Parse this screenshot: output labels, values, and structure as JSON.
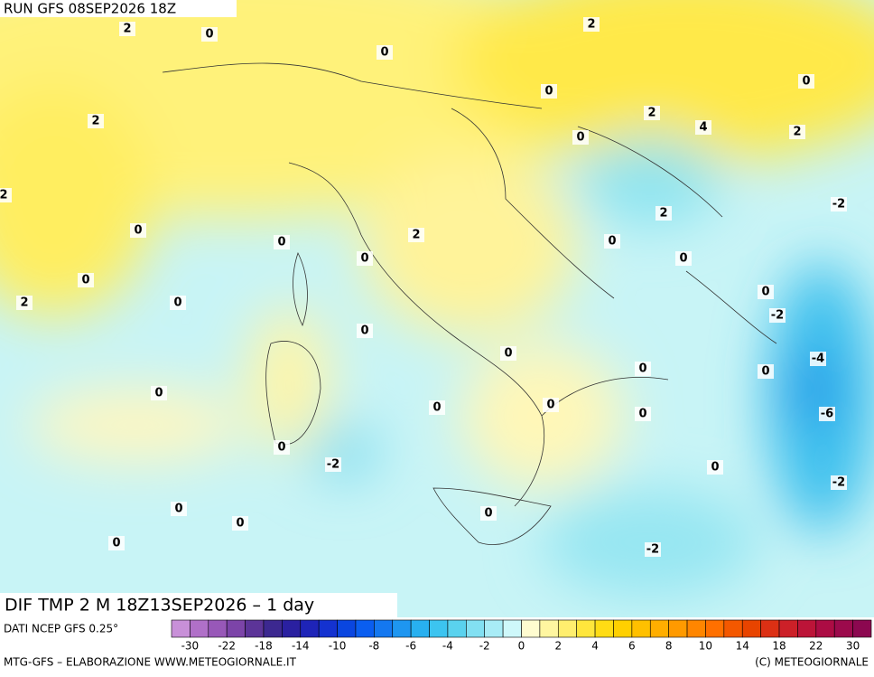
{
  "header": {
    "run": "RUN GFS 08SEP2026 18Z"
  },
  "map": {
    "title": "DIF TMP 2 M 18Z13SEP2026 – 1 day",
    "source": "DATI NCEP GFS 0.25°",
    "contour_labels": [
      2,
      0,
      2,
      0,
      0,
      0,
      2,
      2,
      4,
      2,
      0,
      2,
      -2,
      2,
      0,
      2,
      0,
      0,
      0,
      0,
      0,
      2,
      0,
      0,
      -2,
      0,
      0,
      -4,
      0,
      0,
      0,
      0,
      0,
      0,
      -6,
      0,
      -2,
      0,
      -2,
      0,
      0,
      0,
      0,
      -2
    ]
  },
  "legend": {
    "ticks": [
      -30,
      -22,
      -18,
      -14,
      -10,
      -8,
      -6,
      -4,
      -2,
      0,
      2,
      4,
      6,
      8,
      10,
      14,
      18,
      22,
      30
    ],
    "colors": [
      "#c890d8",
      "#b070c8",
      "#9858b8",
      "#7c44a8",
      "#5c3498",
      "#3c2890",
      "#2a20a0",
      "#1e24b8",
      "#1432d0",
      "#0a46e0",
      "#0a5ef0",
      "#1478f0",
      "#1e96f0",
      "#28b0f0",
      "#3cc4f0",
      "#5ad2ee",
      "#82e0f2",
      "#a8ecf6",
      "#cef8fa",
      "#fffcd0",
      "#fff6a0",
      "#ffee6e",
      "#ffe63c",
      "#ffdc14",
      "#ffd000",
      "#ffc000",
      "#ffae00",
      "#ff9a00",
      "#ff8600",
      "#ff7000",
      "#f45800",
      "#e84400",
      "#dc3014",
      "#cc2028",
      "#bc1438",
      "#ac0c44",
      "#9c0a4c",
      "#8c0850"
    ]
  },
  "footer": {
    "left": "MTG-GFS – ELABORAZIONE WWW.METEOGIORNALE.IT",
    "right": "(C) METEOGIORNALE"
  }
}
